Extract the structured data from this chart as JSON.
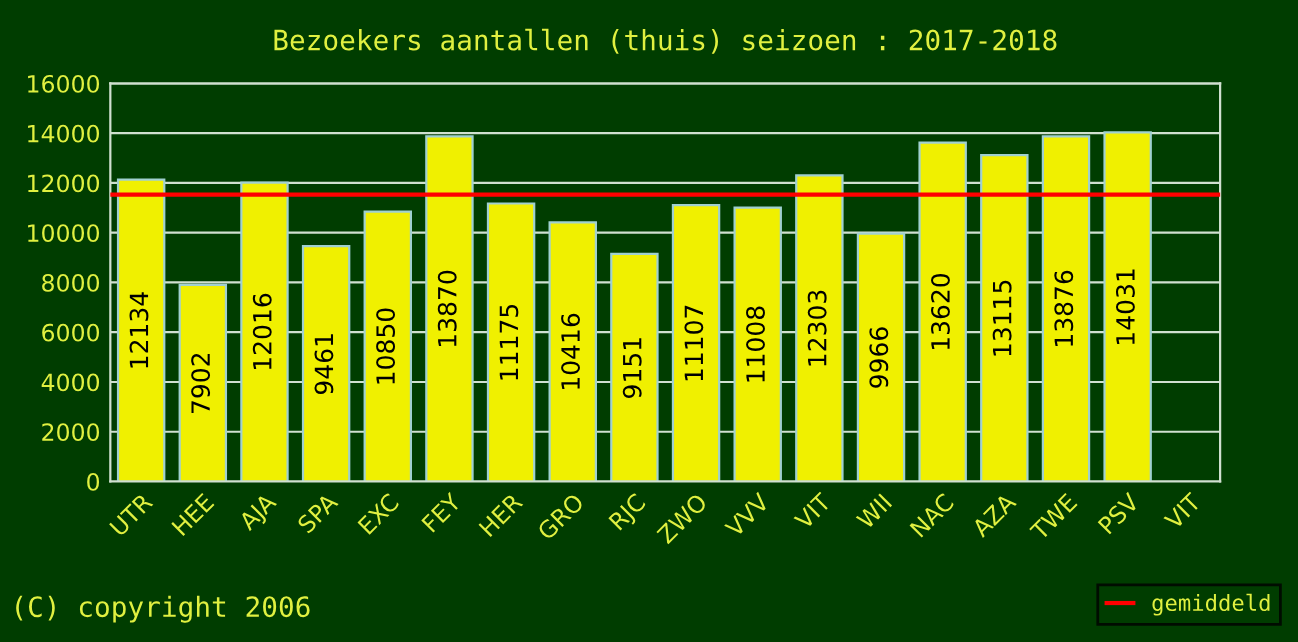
{
  "chart_data": {
    "type": "bar",
    "title": "Bezoekers aantallen (thuis) seizoen : 2017-2018",
    "categories": [
      "UTR",
      "HEE",
      "AJA",
      "SPA",
      "EXC",
      "FEY",
      "HER",
      "GRO",
      "RJC",
      "ZWO",
      "VVV",
      "VIT",
      "WII",
      "NAC",
      "AZA",
      "TWE",
      "PSV",
      "VIT"
    ],
    "values": [
      12134,
      7902,
      12016,
      9461,
      10850,
      13870,
      11175,
      10416,
      9151,
      11107,
      11008,
      12303,
      9966,
      13620,
      13115,
      13876,
      14031,
      null
    ],
    "color": "#f0f000",
    "ylim": [
      0,
      16000
    ],
    "yticks": [
      0,
      2000,
      4000,
      6000,
      8000,
      10000,
      12000,
      14000,
      16000
    ],
    "grid": "y",
    "data_labels": true,
    "legend": "bottom right",
    "ref_lines": [
      {
        "axis": "y",
        "value": 11530,
        "label": "gemiddeld",
        "color": "#ff0000"
      }
    ],
    "annotations": [
      "(C) copyright 2006"
    ]
  }
}
